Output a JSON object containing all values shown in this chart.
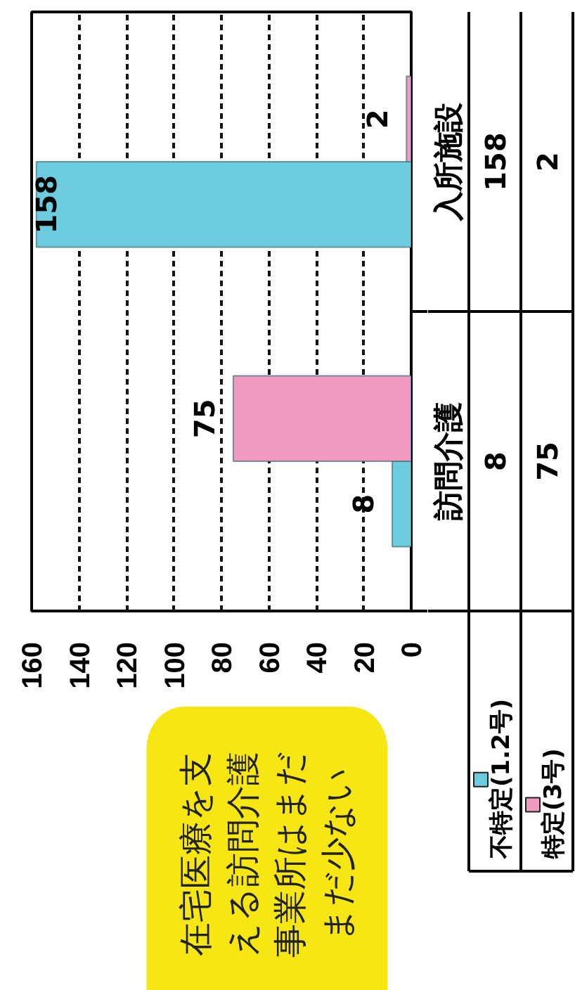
{
  "chart_data": {
    "type": "bar",
    "orientation": "horizontal",
    "categories": [
      "入所施設",
      "訪問介護"
    ],
    "series": [
      {
        "name": "不特定(1.2号)",
        "color": "#6ccbdc",
        "values": [
          158,
          8
        ],
        "value_labels": [
          "158",
          "8"
        ]
      },
      {
        "name": "特定(3号)",
        "color": "#f39ac3",
        "values": [
          2,
          75
        ],
        "value_labels": [
          "2",
          "75"
        ]
      }
    ],
    "xlim": [
      160,
      0
    ],
    "xticks": [
      0,
      20,
      40,
      60,
      80,
      100,
      120,
      140,
      160
    ],
    "grid": "x",
    "legend": "bottom right",
    "data_labels": true,
    "annotations": [
      "在宅医療を支える訪問介護事業所はまだまだ少ない"
    ]
  }
}
